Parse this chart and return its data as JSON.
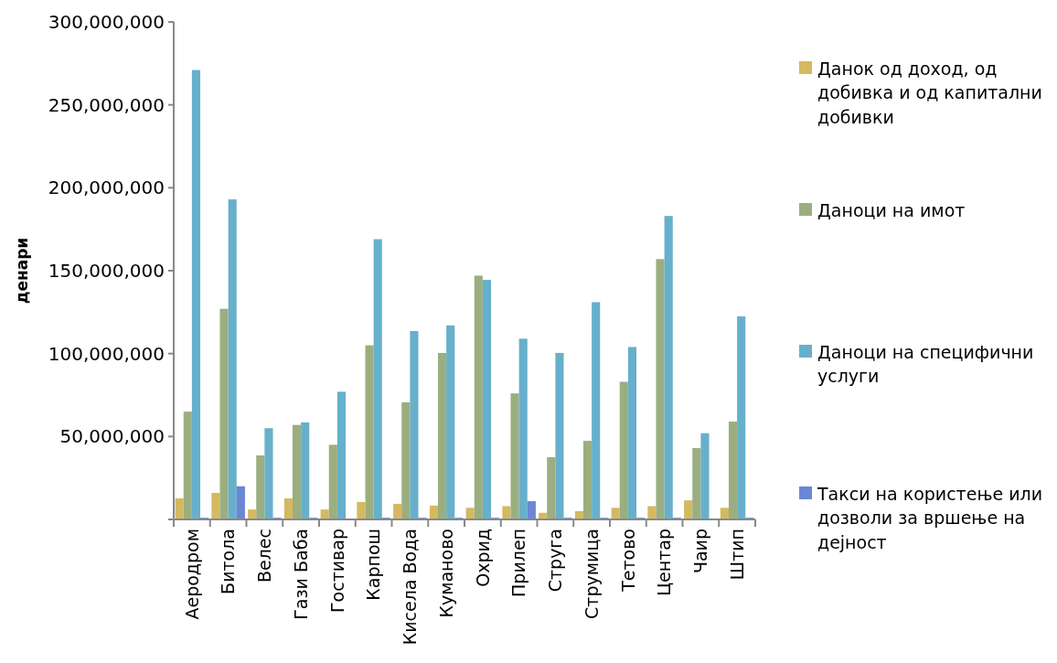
{
  "chart_data": {
    "type": "bar",
    "ylabel": "денари",
    "categories": [
      "Аеродром",
      "Битола",
      "Велес",
      "Гази Баба",
      "Гостивар",
      "Карпош",
      "Кисела Вода",
      "Куманово",
      "Охрид",
      "Прилеп",
      "Струга",
      "Струмица",
      "Тетово",
      "Центар",
      "Чаир",
      "Штип"
    ],
    "series": [
      {
        "name": "Данок од доход, од добивка и од капитални добивки",
        "color": "#d4b960",
        "values": [
          12700000,
          16000000,
          6000000,
          12700000,
          6000000,
          10500000,
          9400000,
          8300000,
          7000000,
          8000000,
          4000000,
          5000000,
          7000000,
          8000000,
          11500000,
          7000000
        ]
      },
      {
        "name": "Даноци на имот",
        "color": "#9bae80",
        "values": [
          65000000,
          127000000,
          38600000,
          57000000,
          45000000,
          105000000,
          70600000,
          100400000,
          147000000,
          76000000,
          37500000,
          47400000,
          83000000,
          157000000,
          43000000,
          59000000
        ]
      },
      {
        "name": "Даноци на специфични услуги",
        "color": "#67b0cb",
        "values": [
          271000000,
          193000000,
          55000000,
          58500000,
          77000000,
          169000000,
          113600000,
          117000000,
          144500000,
          109000000,
          100400000,
          131000000,
          104000000,
          183000000,
          52000000,
          122500000
        ]
      },
      {
        "name": "Такси на користење или дозволи за вршење на дејност",
        "color": "#6a86d4",
        "values": [
          1000000,
          20000000,
          1000000,
          1000000,
          0,
          1000000,
          1000000,
          1000000,
          1000000,
          11000000,
          1000000,
          1000000,
          1000000,
          1000000,
          0,
          1000000
        ]
      }
    ],
    "ylim": [
      0,
      300000000
    ],
    "yticks": [
      {
        "value": 0,
        "label": null
      },
      {
        "value": 50000000,
        "label": "50,000,000"
      },
      {
        "value": 100000000,
        "label": "100,000,000"
      },
      {
        "value": 150000000,
        "label": "150,000,000"
      },
      {
        "value": 200000000,
        "label": "200,000,000"
      },
      {
        "value": 250000000,
        "label": "250,000,000"
      },
      {
        "value": 300000000,
        "label": "300,000,000"
      }
    ],
    "grid": false,
    "legend": "right"
  }
}
